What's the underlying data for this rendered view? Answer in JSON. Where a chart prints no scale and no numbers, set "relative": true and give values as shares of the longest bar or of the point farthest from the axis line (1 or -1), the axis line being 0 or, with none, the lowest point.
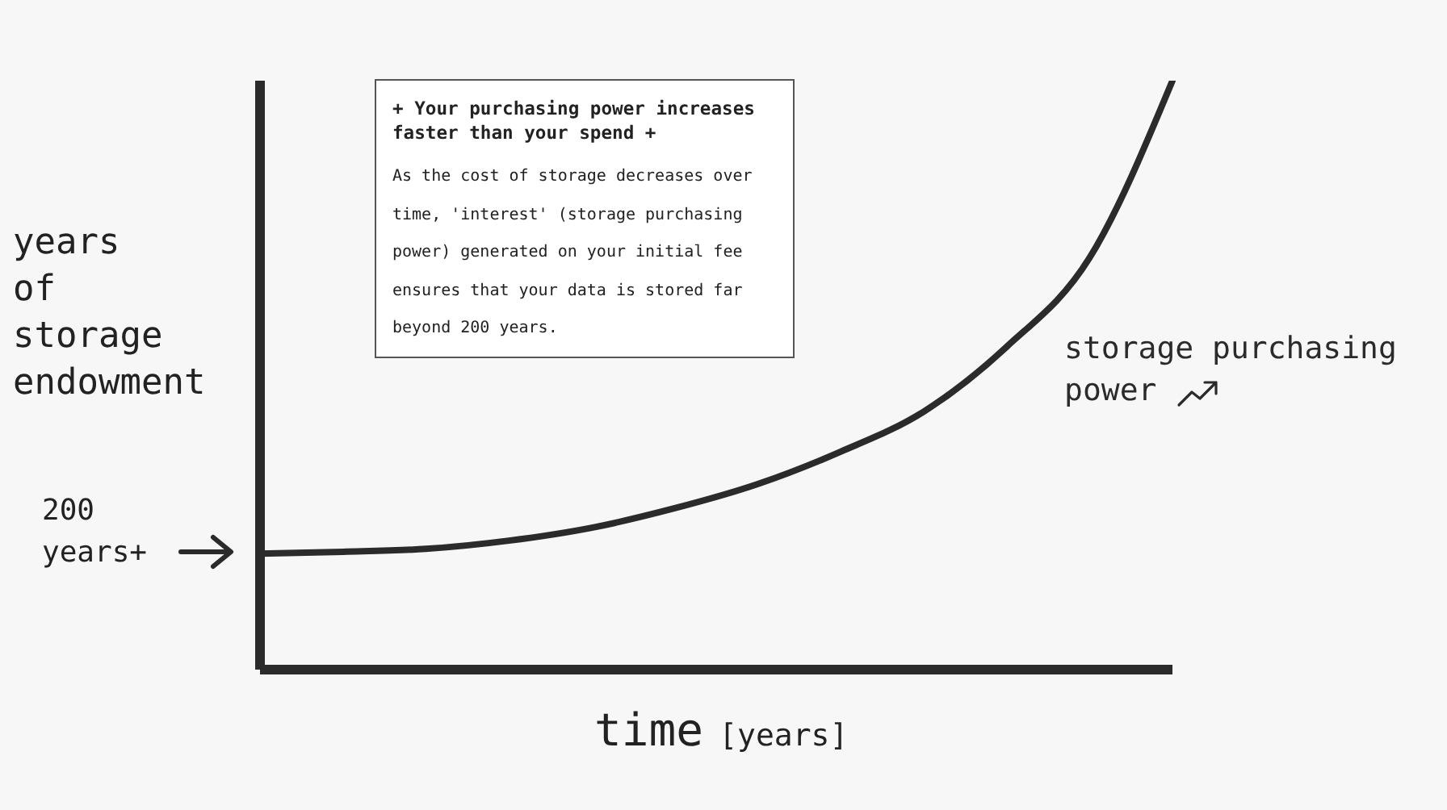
{
  "chart_data": {
    "type": "line",
    "relative": true,
    "xlabel": "time [years]",
    "ylabel": "years of storage endowment",
    "categories": [
      null,
      null,
      null,
      null,
      null,
      null,
      null,
      null,
      null,
      null,
      null,
      null
    ],
    "series": [
      {
        "name": "storage purchasing power",
        "color": "#2b2b2b",
        "values": [
          0.197,
          0.2,
          0.205,
          0.219,
          0.241,
          0.274,
          0.315,
          0.37,
          0.438,
          0.548,
          0.699,
          1
        ]
      }
    ],
    "annotations": [
      "+ Your purchasing power increases faster than your spend +",
      "As the cost of storage decreases over time, 'interest' (storage purchasing power) generated on your initial fee ensures that your data is stored far beyond 200 years.",
      "200 years+"
    ],
    "grid": false,
    "legend": false,
    "marker": "none",
    "line_style": "solid"
  }
}
